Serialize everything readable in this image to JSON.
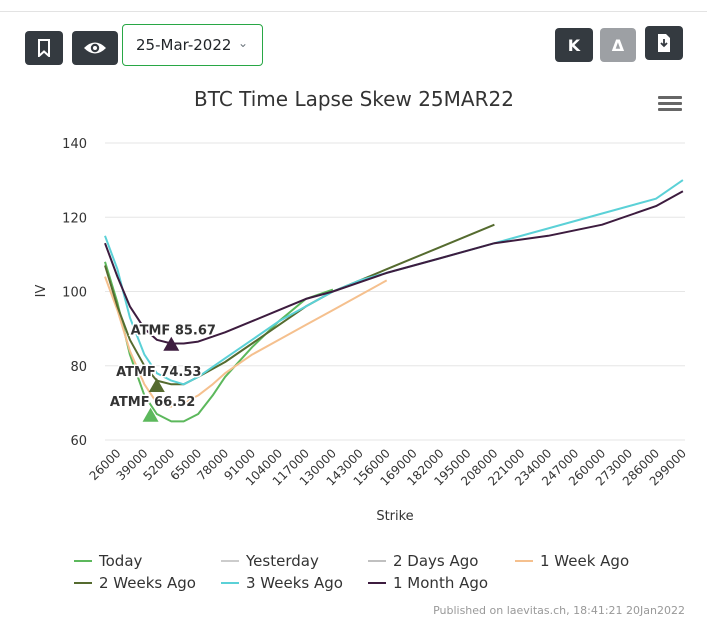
{
  "toolbar": {
    "bookmark_icon": "bookmark-icon",
    "eye_icon": "eye-icon",
    "date_value": "25-Mar-2022",
    "k_label": "K",
    "delta_label": "Δ",
    "download_icon": "download-icon",
    "menu_icon": "hamburger-menu-icon"
  },
  "colors": {
    "dark_button": "#343a40",
    "gray_button": "#9da0a4",
    "select_border": "#28a745"
  },
  "footer": {
    "published": "Published on laevitas.ch, 18:41:21 20Jan2022"
  },
  "chart_data": {
    "type": "line",
    "title": "BTC Time Lapse Skew 25MAR22",
    "xlabel": "Strike",
    "ylabel": "IV",
    "x_ticks": [
      "26000",
      "39000",
      "52000",
      "65000",
      "78000",
      "91000",
      "104000",
      "117000",
      "130000",
      "143000",
      "156000",
      "169000",
      "182000",
      "195000",
      "208000",
      "221000",
      "234000",
      "247000",
      "260000",
      "273000",
      "286000",
      "299000"
    ],
    "xlim": [
      20000,
      300000
    ],
    "ylim": [
      60,
      140
    ],
    "y_ticks": [
      60,
      80,
      100,
      120,
      140
    ],
    "grid": true,
    "legend_position": "bottom",
    "series": [
      {
        "name": "Today",
        "color": "#5cb85c",
        "points": [
          [
            20000,
            108
          ],
          [
            26000,
            97
          ],
          [
            32000,
            83
          ],
          [
            39000,
            72
          ],
          [
            45000,
            67
          ],
          [
            52000,
            65
          ],
          [
            58000,
            65
          ],
          [
            65000,
            67
          ],
          [
            72000,
            72
          ],
          [
            78000,
            77
          ],
          [
            91000,
            85
          ],
          [
            104000,
            92
          ],
          [
            117000,
            98
          ],
          [
            130000,
            100.5
          ]
        ]
      },
      {
        "name": "Yesterday",
        "color": "#cccccc",
        "points": []
      },
      {
        "name": "2 Days Ago",
        "color": "#c0c0c0",
        "points": []
      },
      {
        "name": "1 Week Ago",
        "color": "#f5c08e",
        "points": [
          [
            20000,
            104
          ],
          [
            26000,
            95
          ],
          [
            32000,
            84
          ],
          [
            39000,
            75
          ],
          [
            45000,
            70
          ],
          [
            52000,
            69
          ],
          [
            58000,
            70
          ],
          [
            65000,
            72
          ],
          [
            72000,
            75
          ],
          [
            78000,
            78
          ],
          [
            91000,
            83
          ],
          [
            104000,
            87
          ],
          [
            117000,
            91
          ],
          [
            130000,
            95
          ],
          [
            143000,
            99
          ],
          [
            156000,
            103
          ]
        ]
      },
      {
        "name": "2 Weeks Ago",
        "color": "#556b2f",
        "points": [
          [
            20000,
            107
          ],
          [
            26000,
            96
          ],
          [
            32000,
            87
          ],
          [
            39000,
            80
          ],
          [
            45000,
            76
          ],
          [
            52000,
            75
          ],
          [
            58000,
            75
          ],
          [
            65000,
            77
          ],
          [
            78000,
            81
          ],
          [
            91000,
            86
          ],
          [
            104000,
            91
          ],
          [
            117000,
            96
          ],
          [
            130000,
            100
          ],
          [
            143000,
            103
          ],
          [
            156000,
            106
          ],
          [
            169000,
            109
          ],
          [
            182000,
            112
          ],
          [
            195000,
            115
          ],
          [
            208000,
            118
          ]
        ]
      },
      {
        "name": "3 Weeks Ago",
        "color": "#5bd1d7",
        "points": [
          [
            20000,
            115
          ],
          [
            26000,
            106
          ],
          [
            32000,
            93
          ],
          [
            39000,
            83
          ],
          [
            45000,
            78
          ],
          [
            52000,
            76
          ],
          [
            58000,
            75
          ],
          [
            65000,
            77
          ],
          [
            78000,
            82
          ],
          [
            91000,
            87
          ],
          [
            104000,
            92
          ],
          [
            117000,
            96
          ],
          [
            130000,
            100
          ],
          [
            143000,
            103
          ],
          [
            156000,
            105
          ],
          [
            182000,
            109
          ],
          [
            208000,
            113
          ],
          [
            234000,
            117
          ],
          [
            260000,
            121
          ],
          [
            286000,
            125
          ],
          [
            299000,
            130
          ]
        ]
      },
      {
        "name": "1 Month Ago",
        "color": "#3d1c3f",
        "points": [
          [
            20000,
            113
          ],
          [
            26000,
            104
          ],
          [
            32000,
            96
          ],
          [
            39000,
            90
          ],
          [
            45000,
            87
          ],
          [
            52000,
            86
          ],
          [
            58000,
            86
          ],
          [
            65000,
            86.5
          ],
          [
            78000,
            89
          ],
          [
            91000,
            92
          ],
          [
            104000,
            95
          ],
          [
            117000,
            98
          ],
          [
            130000,
            100
          ],
          [
            156000,
            105
          ],
          [
            182000,
            109
          ],
          [
            208000,
            113
          ],
          [
            234000,
            115
          ],
          [
            260000,
            118
          ],
          [
            286000,
            123
          ],
          [
            299000,
            127
          ]
        ]
      }
    ],
    "annotations": [
      {
        "label": "ATMF 85.67",
        "x": 52000,
        "y": 85.67,
        "color": "#3d1c3f"
      },
      {
        "label": "ATMF 74.53",
        "x": 45000,
        "y": 74.53,
        "color": "#556b2f"
      },
      {
        "label": "ATMF 66.52",
        "x": 42000,
        "y": 66.52,
        "color": "#5cb85c"
      }
    ]
  }
}
